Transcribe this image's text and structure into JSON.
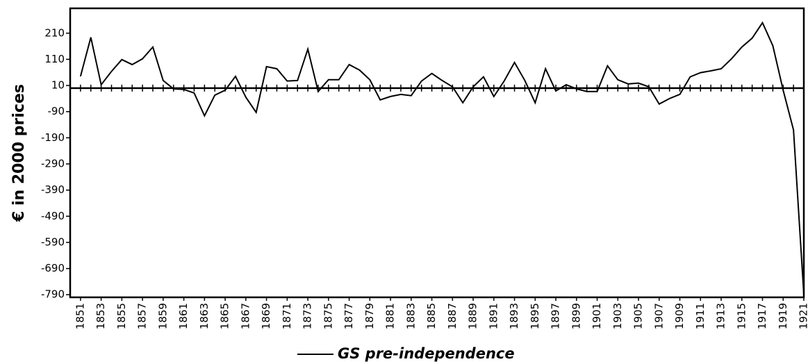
{
  "chart_data": {
    "type": "line",
    "y_label": "€ in 2000 prices",
    "x": [
      1851,
      1852,
      1853,
      1854,
      1855,
      1856,
      1857,
      1858,
      1859,
      1860,
      1861,
      1862,
      1863,
      1864,
      1865,
      1866,
      1867,
      1868,
      1869,
      1870,
      1871,
      1872,
      1873,
      1874,
      1875,
      1876,
      1877,
      1878,
      1879,
      1880,
      1881,
      1882,
      1883,
      1884,
      1885,
      1886,
      1887,
      1888,
      1889,
      1890,
      1891,
      1892,
      1893,
      1894,
      1895,
      1896,
      1897,
      1898,
      1899,
      1900,
      1901,
      1902,
      1903,
      1904,
      1905,
      1906,
      1907,
      1908,
      1909,
      1910,
      1911,
      1912,
      1913,
      1914,
      1915,
      1916,
      1917,
      1918,
      1919,
      1920,
      1921
    ],
    "series": [
      {
        "name": "GS pre-independence",
        "color": "#000000",
        "values": [
          45,
          194,
          13,
          64,
          109,
          90,
          112,
          157,
          29,
          -3,
          -5,
          -19,
          -106,
          -27,
          -8,
          45,
          -35,
          -93,
          82,
          74,
          27,
          29,
          149,
          -13,
          32,
          32,
          90,
          69,
          32,
          -45,
          -32,
          -24,
          -29,
          27,
          56,
          29,
          5,
          -56,
          5,
          43,
          -32,
          27,
          98,
          29,
          -56,
          74,
          -11,
          13,
          -3,
          -13,
          -13,
          85,
          32,
          16,
          19,
          5,
          -61,
          -40,
          -24,
          43,
          59,
          66,
          74,
          112,
          157,
          191,
          250,
          162,
          -8,
          -160,
          -790
        ]
      }
    ],
    "xlim": [
      1850,
      1921
    ],
    "xticks": [
      1851,
      1853,
      1855,
      1857,
      1859,
      1861,
      1863,
      1865,
      1867,
      1869,
      1871,
      1873,
      1875,
      1877,
      1879,
      1881,
      1883,
      1885,
      1887,
      1889,
      1891,
      1893,
      1895,
      1897,
      1899,
      1901,
      1903,
      1905,
      1907,
      1909,
      1911,
      1913,
      1915,
      1917,
      1919,
      1921
    ],
    "ylim": [
      -800,
      305
    ],
    "yticks": [
      -790,
      -690,
      -590,
      -490,
      -390,
      -290,
      -190,
      -90,
      10,
      110,
      210
    ],
    "legend": "bottom"
  }
}
